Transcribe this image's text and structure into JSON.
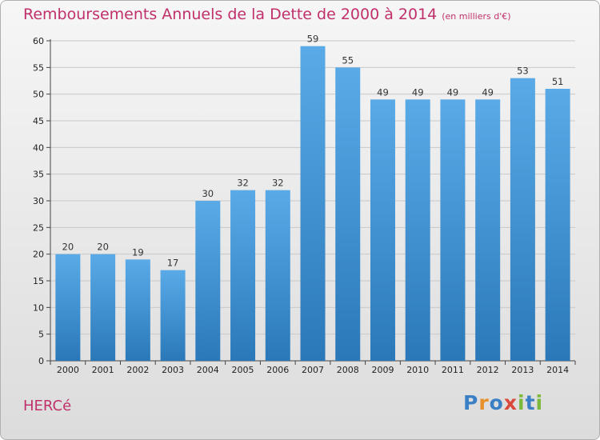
{
  "header": {
    "title": "Remboursements Annuels de la Dette de 2000 à 2014",
    "unit": "(en milliers d'€)"
  },
  "commune": "HERCé",
  "logo": {
    "letters": [
      {
        "ch": "P",
        "color": "#3b7fc4"
      },
      {
        "ch": "r",
        "color": "#e8912a"
      },
      {
        "ch": "o",
        "color": "#3b7fc4"
      },
      {
        "ch": "x",
        "color": "#d9483b"
      },
      {
        "ch": "i",
        "color": "#7bb93d"
      },
      {
        "ch": "t",
        "color": "#3b7fc4"
      },
      {
        "ch": "i",
        "color": "#7bb93d"
      }
    ]
  },
  "chart_data": {
    "type": "bar",
    "categories": [
      "2000",
      "2001",
      "2002",
      "2003",
      "2004",
      "2005",
      "2006",
      "2007",
      "2008",
      "2009",
      "2010",
      "2011",
      "2012",
      "2013",
      "2014"
    ],
    "values": [
      20,
      20,
      19,
      17,
      30,
      32,
      32,
      59,
      55,
      49,
      49,
      49,
      49,
      53,
      51
    ],
    "title": "Remboursements Annuels de la Dette de 2000 à 2014",
    "ylabel": "",
    "xlabel": "",
    "ylim": [
      0,
      60
    ],
    "yticks": [
      0,
      5,
      10,
      15,
      20,
      25,
      30,
      35,
      40,
      45,
      50,
      55,
      60
    ],
    "grid": true,
    "bar_color_top": "#5aaae8",
    "bar_color_bottom": "#2a78b8"
  }
}
